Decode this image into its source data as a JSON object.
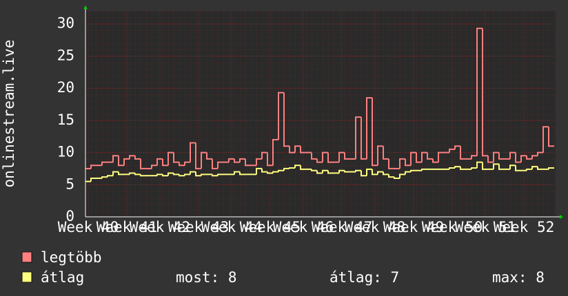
{
  "chart_data": {
    "type": "step-line",
    "y_label": "onlinestream.live",
    "categories": [
      "Week 40",
      null,
      null,
      null,
      null,
      null,
      null,
      "Week 41",
      null,
      null,
      null,
      null,
      null,
      "Week 42",
      null,
      null,
      null,
      null,
      null,
      null,
      "Week 43",
      null,
      null,
      null,
      null,
      null,
      "Week 44",
      null,
      null,
      null,
      null,
      null,
      null,
      "Week 45",
      null,
      null,
      null,
      null,
      null,
      "Week 46",
      null,
      null,
      null,
      null,
      null,
      null,
      "Week 47",
      null,
      null,
      null,
      null,
      null,
      "Week 48",
      null,
      null,
      null,
      null,
      null,
      null,
      "Week 49",
      null,
      null,
      null,
      null,
      null,
      null,
      "Week 50",
      null,
      null,
      null,
      null,
      null,
      "Week 51",
      null,
      null,
      null,
      null,
      null,
      null,
      "Week 52",
      null,
      null,
      null,
      null,
      null
    ],
    "series": [
      {
        "name": "legtöbb",
        "color": "#ff8080",
        "values": [
          7.5,
          8,
          8,
          8.5,
          8.5,
          9.5,
          8,
          9,
          9.5,
          9,
          7.5,
          7.5,
          8,
          9,
          8,
          10,
          8.5,
          8,
          8.5,
          11.5,
          7.5,
          10,
          9,
          7.5,
          8.5,
          8.5,
          9,
          8.5,
          9,
          8,
          8,
          9,
          10,
          8,
          12,
          19.3,
          11,
          10,
          11,
          10,
          10,
          9,
          8.5,
          10,
          8.5,
          8.5,
          10,
          9,
          9,
          15.5,
          9,
          18.5,
          8,
          11,
          9,
          7.5,
          7.5,
          9,
          8,
          10,
          8.5,
          10,
          9,
          8.5,
          10,
          10,
          10.5,
          11,
          9,
          9,
          9.5,
          29.3,
          9.5,
          8.5,
          10,
          9,
          9,
          10,
          8.5,
          9.5,
          9,
          9.5,
          10,
          14,
          11
        ]
      },
      {
        "name": "átlag",
        "color": "#ffff80",
        "values": [
          5.5,
          6,
          6,
          6.2,
          6.4,
          7,
          6.6,
          6.6,
          6.8,
          6.6,
          6.4,
          6.4,
          6.4,
          6.6,
          6.4,
          6.8,
          6.6,
          6.4,
          6.6,
          7,
          6.4,
          6.6,
          6.6,
          6.4,
          6.6,
          6.6,
          6.6,
          7,
          6.6,
          6.6,
          6.6,
          7.5,
          7,
          6.8,
          7,
          7.2,
          7.5,
          7.6,
          8,
          7.4,
          7.4,
          7.2,
          6.8,
          7.2,
          6.8,
          6.8,
          7.2,
          7,
          7,
          7.2,
          6.4,
          7.4,
          6.6,
          7,
          6.6,
          6.2,
          6,
          6.6,
          7,
          7.2,
          7.2,
          7.4,
          7.4,
          7.4,
          7.4,
          7.4,
          7.6,
          7.8,
          7.4,
          7.4,
          7.6,
          8.5,
          7.4,
          7.4,
          8.2,
          7.4,
          7.4,
          8,
          7.2,
          7.2,
          7.4,
          7.8,
          7.4,
          7.4,
          7.6
        ]
      }
    ],
    "ylim": [
      0,
      32
    ],
    "yticks": [
      0,
      5,
      10,
      15,
      20,
      25,
      30
    ],
    "grid": true,
    "stats": [
      "most: 8",
      "átlag: 7",
      "max: 8"
    ]
  }
}
